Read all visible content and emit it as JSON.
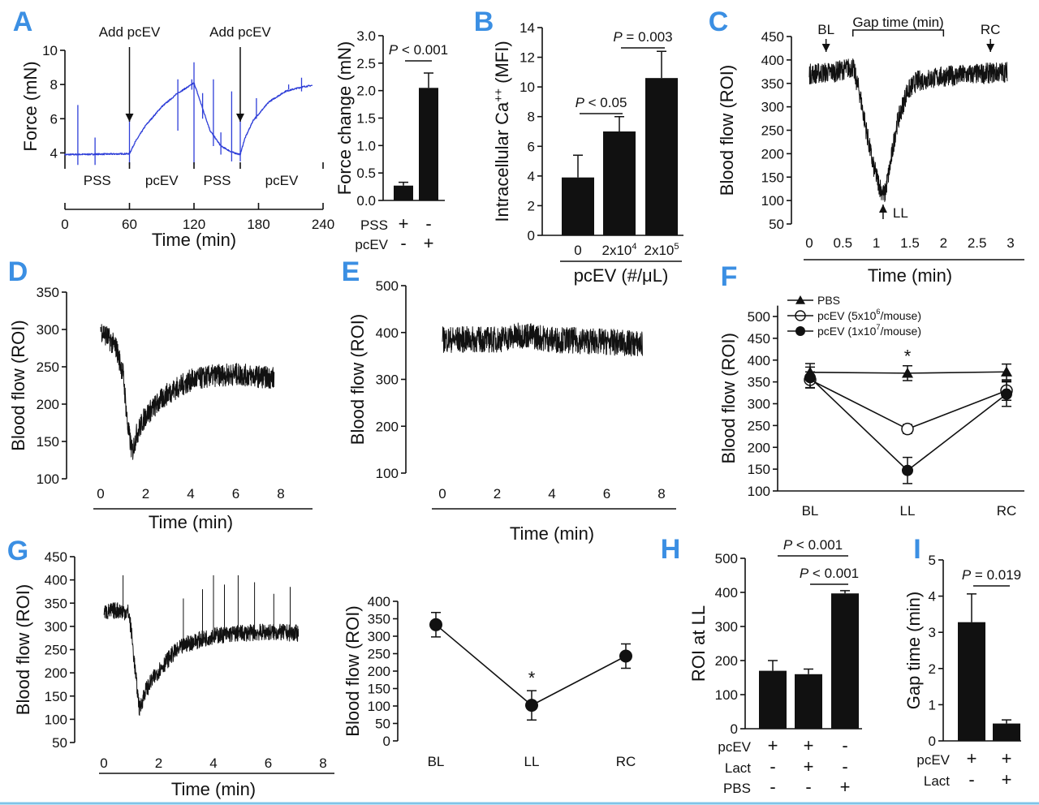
{
  "colors": {
    "panel_letter": "#3b8fe3",
    "trace_A": "#2f3fd8",
    "ink": "#111111",
    "bottom_rule": "#7fc4e8"
  },
  "panels": [
    "A",
    "B",
    "C",
    "D",
    "E",
    "F",
    "G",
    "H",
    "I"
  ],
  "chart_data": [
    {
      "panel": "A",
      "type": "line",
      "ylabel": "Force (mN)",
      "xlabel": "Time (min)",
      "xlim": [
        0,
        240
      ],
      "ylim": [
        3.45,
        10
      ],
      "yticks": [
        "4",
        "6",
        "8",
        "10"
      ],
      "xticks": [
        "0",
        "60",
        "120",
        "180",
        "240"
      ],
      "segments": [
        {
          "label": "PSS",
          "from": 0,
          "to": 60
        },
        {
          "label": "pcEV",
          "from": 60,
          "to": 120
        },
        {
          "label": "PSS",
          "from": 120,
          "to": 163
        },
        {
          "label": "pcEV",
          "from": 163,
          "to": 240
        }
      ],
      "annotations": [
        {
          "text": "Add pcEV",
          "x": 60
        },
        {
          "text": "Add pcEV",
          "x": 163
        }
      ],
      "series": [
        {
          "color": "#2f3fd8",
          "noise": 0.04,
          "points": [
            [
              0,
              3.9
            ],
            [
              60,
              3.95
            ],
            [
              65,
              4.6
            ],
            [
              75,
              5.6
            ],
            [
              90,
              6.7
            ],
            [
              105,
              7.5
            ],
            [
              118,
              8.0
            ],
            [
              120,
              8.1
            ],
            [
              128,
              6.6
            ],
            [
              135,
              5.3
            ],
            [
              145,
              4.4
            ],
            [
              155,
              4.05
            ],
            [
              163,
              3.9
            ],
            [
              167,
              4.8
            ],
            [
              175,
              5.9
            ],
            [
              190,
              7.0
            ],
            [
              205,
              7.6
            ],
            [
              220,
              7.85
            ],
            [
              230,
              7.95
            ]
          ],
          "spikes": [
            [
              12,
              3.3,
              6.8
            ],
            [
              28,
              3.3,
              4.9
            ],
            [
              60,
              3.3,
              6.0
            ],
            [
              105,
              5.3,
              8.3
            ],
            [
              118,
              7.7,
              8.3
            ],
            [
              120,
              3.3,
              9.3
            ],
            [
              128,
              6.0,
              7.5
            ],
            [
              138,
              4.4,
              8.3
            ],
            [
              145,
              3.9,
              5.2
            ],
            [
              155,
              3.5,
              7.6
            ],
            [
              163,
              3.5,
              6.0
            ],
            [
              178,
              6.0,
              7.2
            ],
            [
              208,
              7.7,
              8.0
            ],
            [
              220,
              7.6,
              8.4
            ]
          ]
        }
      ]
    },
    {
      "panel": "A",
      "type": "bar",
      "ylabel": "Force change (mN)",
      "ylim": [
        0,
        3
      ],
      "yticks": [
        "0.0",
        "0.5",
        "1.0",
        "1.5",
        "2.0",
        "2.5",
        "3.0"
      ],
      "values": [
        0.27,
        2.05
      ],
      "errors": [
        0.06,
        0.27
      ],
      "conditions": [
        {
          "label": "PSS",
          "signs": [
            "+",
            "-"
          ]
        },
        {
          "label": "pcEV",
          "signs": [
            "-",
            "+"
          ]
        }
      ],
      "comparisons": [
        {
          "p": "P",
          "text": " < 0.001",
          "between": [
            0,
            1
          ]
        }
      ]
    },
    {
      "panel": "B",
      "type": "bar",
      "ylabel": {
        "pre": "Intracellular Ca",
        "sup": "++",
        "post": " (MFI)"
      },
      "xlabel": "pcEV (#/μL)",
      "ylim": [
        0,
        14
      ],
      "yticks": [
        "0",
        "2",
        "4",
        "6",
        "8",
        "10",
        "12",
        "14"
      ],
      "categories": [
        {
          "pre": "0",
          "sup": ""
        },
        {
          "pre": "2x10",
          "sup": "4"
        },
        {
          "pre": "2x10",
          "sup": "5"
        }
      ],
      "values": [
        3.9,
        7.0,
        10.6
      ],
      "errors": [
        1.5,
        1.0,
        1.8
      ],
      "comparisons": [
        {
          "p": "P",
          "text": " < 0.05",
          "between": [
            0,
            1
          ]
        },
        {
          "p": "P",
          "text": " = 0.003",
          "between": [
            1,
            2
          ]
        }
      ]
    },
    {
      "panel": "C",
      "type": "line",
      "ylabel": "Blood flow (ROI)",
      "xlabel": "Time (min)",
      "xlim": [
        0,
        3
      ],
      "ylim": [
        50,
        450
      ],
      "yticks": [
        "50",
        "100",
        "150",
        "200",
        "250",
        "300",
        "350",
        "400",
        "450"
      ],
      "xticks": [
        "0",
        "0.5",
        "1",
        "1.5",
        "2",
        "2.5",
        "3"
      ],
      "annotations": [
        {
          "text": "BL",
          "x": 0.25
        },
        {
          "text": "RC",
          "x": 2.7
        },
        {
          "text": "LL",
          "x": 1.1
        },
        {
          "text": "Gap time (min)",
          "from": 0.65,
          "to": 2.0
        }
      ],
      "series": [
        {
          "color": "#111111",
          "noise": 22,
          "points": [
            [
              0,
              370
            ],
            [
              0.4,
              375
            ],
            [
              0.65,
              385
            ],
            [
              0.75,
              330
            ],
            [
              0.85,
              250
            ],
            [
              0.95,
              175
            ],
            [
              1.05,
              130
            ],
            [
              1.12,
              110
            ],
            [
              1.2,
              170
            ],
            [
              1.3,
              260
            ],
            [
              1.45,
              330
            ],
            [
              1.6,
              355
            ],
            [
              2.0,
              365
            ],
            [
              2.5,
              370
            ],
            [
              2.95,
              375
            ]
          ]
        }
      ]
    },
    {
      "panel": "D",
      "type": "line",
      "ylabel": "Blood flow (ROI)",
      "xlabel": "Time (min)",
      "xlim": [
        0,
        8
      ],
      "ylim": [
        100,
        350
      ],
      "yticks": [
        "100",
        "150",
        "200",
        "250",
        "300",
        "350"
      ],
      "xticks": [
        "0",
        "2",
        "4",
        "6",
        "8"
      ],
      "series": [
        {
          "color": "#111111",
          "noise": 15,
          "points": [
            [
              0,
              300
            ],
            [
              0.3,
              290
            ],
            [
              0.7,
              275
            ],
            [
              1.0,
              240
            ],
            [
              1.2,
              170
            ],
            [
              1.4,
              135
            ],
            [
              1.6,
              160
            ],
            [
              2.0,
              185
            ],
            [
              2.5,
              200
            ],
            [
              3,
              215
            ],
            [
              4,
              232
            ],
            [
              5,
              238
            ],
            [
              6,
              240
            ],
            [
              7,
              237
            ],
            [
              7.7,
              235
            ]
          ]
        }
      ]
    },
    {
      "panel": "E",
      "type": "line",
      "ylabel": "Blood flow (ROI)",
      "xlabel": "Time (min)",
      "xlim": [
        0,
        8
      ],
      "ylim": [
        100,
        500
      ],
      "yticks": [
        "100",
        "200",
        "300",
        "400",
        "500"
      ],
      "xticks": [
        "0",
        "2",
        "4",
        "6",
        "8"
      ],
      "series": [
        {
          "color": "#111111",
          "noise": 28,
          "points": [
            [
              0,
              385
            ],
            [
              2,
              385
            ],
            [
              3,
              395
            ],
            [
              4,
              385
            ],
            [
              6,
              380
            ],
            [
              7.3,
              375
            ]
          ]
        }
      ]
    },
    {
      "panel": "F",
      "type": "line",
      "ylabel": "Blood flow (ROI)",
      "categories": [
        "BL",
        "LL",
        "RC"
      ],
      "ylim": [
        100,
        500
      ],
      "yticks": [
        "100",
        "150",
        "200",
        "250",
        "300",
        "350",
        "400",
        "450",
        "500"
      ],
      "annotations": [
        {
          "text": "*",
          "category": "LL"
        }
      ],
      "legend": "top-left",
      "series": [
        {
          "name": {
            "pre": "PBS",
            "sup": "",
            "post": ""
          },
          "marker": "triangle-filled",
          "values": [
            372,
            370,
            373
          ],
          "errors": [
            20,
            17,
            18
          ]
        },
        {
          "name": {
            "pre": "pcEV (5x10",
            "sup": "6",
            "post": "/mouse)"
          },
          "marker": "circle-open",
          "values": [
            355,
            242,
            330
          ],
          "errors": [
            18,
            10,
            22
          ]
        },
        {
          "name": {
            "pre": "pcEV (1x10",
            "sup": "7",
            "post": "/mouse)"
          },
          "marker": "circle-filled",
          "values": [
            360,
            147,
            322
          ],
          "errors": [
            24,
            30,
            28
          ]
        }
      ]
    },
    {
      "panel": "G",
      "type": "line",
      "ylabel": "Blood flow (ROI)",
      "xlabel": "Time (min)",
      "xlim": [
        0,
        8
      ],
      "ylim": [
        50,
        450
      ],
      "yticks": [
        "50",
        "100",
        "150",
        "200",
        "250",
        "300",
        "350",
        "400",
        "450"
      ],
      "xticks": [
        "0",
        "2",
        "4",
        "6",
        "8"
      ],
      "series": [
        {
          "color": "#111111",
          "noise": 18,
          "points": [
            [
              0,
              330
            ],
            [
              0.5,
              335
            ],
            [
              0.9,
              330
            ],
            [
              1.0,
              290
            ],
            [
              1.15,
              200
            ],
            [
              1.3,
              120
            ],
            [
              1.5,
              160
            ],
            [
              2,
              205
            ],
            [
              2.5,
              240
            ],
            [
              3,
              262
            ],
            [
              4,
              280
            ],
            [
              5,
              285
            ],
            [
              6,
              288
            ],
            [
              7.1,
              285
            ]
          ],
          "spikes": [
            [
              0.7,
              320,
              410
            ],
            [
              2.9,
              260,
              360
            ],
            [
              3.6,
              270,
              380
            ],
            [
              4.0,
              275,
              410
            ],
            [
              4.4,
              280,
              390
            ],
            [
              4.9,
              280,
              410
            ],
            [
              5.5,
              285,
              395
            ],
            [
              6.2,
              285,
              370
            ],
            [
              6.8,
              285,
              385
            ]
          ]
        }
      ]
    },
    {
      "panel": "G",
      "type": "line",
      "ylabel": "Blood flow (ROI)",
      "categories": [
        "BL",
        "LL",
        "RC"
      ],
      "ylim": [
        0,
        400
      ],
      "yticks": [
        "0",
        "50",
        "100",
        "150",
        "200",
        "250",
        "300",
        "350",
        "400"
      ],
      "annotations": [
        {
          "text": "*",
          "category": "LL"
        }
      ],
      "series": [
        {
          "marker": "circle-filled",
          "values": [
            333,
            102,
            243
          ],
          "errors": [
            35,
            42,
            35
          ]
        }
      ]
    },
    {
      "panel": "H",
      "type": "bar",
      "ylabel": "ROI at LL",
      "ylim": [
        0,
        500
      ],
      "yticks": [
        "0",
        "100",
        "200",
        "300",
        "400",
        "500"
      ],
      "values": [
        170,
        160,
        397
      ],
      "errors": [
        30,
        15,
        8
      ],
      "conditions": [
        {
          "label": "pcEV",
          "signs": [
            "+",
            "+",
            "-"
          ]
        },
        {
          "label": "Lact",
          "signs": [
            "-",
            "+",
            "-"
          ]
        },
        {
          "label": "PBS",
          "signs": [
            "-",
            "-",
            "+"
          ]
        }
      ],
      "comparisons": [
        {
          "p": "P",
          "text": " < 0.001",
          "between": [
            0,
            2
          ]
        },
        {
          "p": "P",
          "text": " < 0.001",
          "between": [
            1,
            2
          ]
        }
      ]
    },
    {
      "panel": "I",
      "type": "bar",
      "ylabel": "Gap time (min)",
      "ylim": [
        0,
        5
      ],
      "yticks": [
        "0",
        "1",
        "2",
        "3",
        "4",
        "5"
      ],
      "values": [
        3.28,
        0.48
      ],
      "errors": [
        0.78,
        0.1
      ],
      "conditions": [
        {
          "label": "pcEV",
          "signs": [
            "+",
            "+"
          ]
        },
        {
          "label": "Lact",
          "signs": [
            "-",
            "+"
          ]
        }
      ],
      "comparisons": [
        {
          "p": "P",
          "text": " = 0.019",
          "between": [
            0,
            1
          ]
        }
      ]
    }
  ]
}
